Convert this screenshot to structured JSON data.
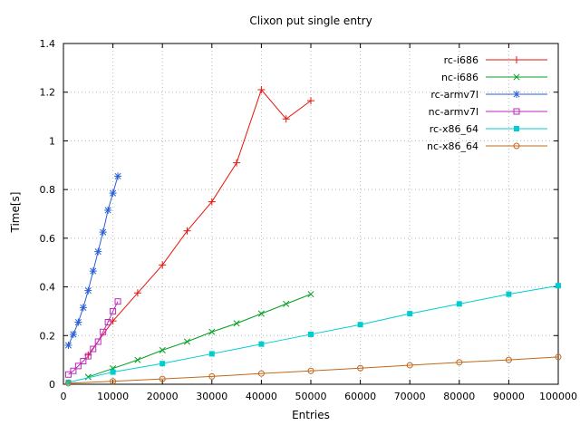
{
  "chart_data": {
    "type": "line",
    "title": "Clixon put single entry",
    "xlabel": "Entries",
    "ylabel": "Time[s]",
    "xlim": [
      0,
      100000
    ],
    "ylim": [
      0,
      1.4
    ],
    "x_ticks": [
      0,
      10000,
      20000,
      30000,
      40000,
      50000,
      60000,
      70000,
      80000,
      90000,
      100000
    ],
    "y_ticks": [
      0,
      0.2,
      0.4,
      0.6,
      0.8,
      1,
      1.2,
      1.4
    ],
    "grid": true,
    "legend_position": "top-right-inside",
    "axis_color": "#000000",
    "grid_color": "#b8b8b8",
    "series": [
      {
        "name": "rc-i686",
        "color": "#e8140c",
        "marker": "plus",
        "points": [
          [
            5000,
            0.12
          ],
          [
            10000,
            0.26
          ],
          [
            15000,
            0.375
          ],
          [
            20000,
            0.49
          ],
          [
            25000,
            0.63
          ],
          [
            30000,
            0.75
          ],
          [
            35000,
            0.91
          ],
          [
            40000,
            1.21
          ],
          [
            45000,
            1.09
          ],
          [
            50000,
            1.165
          ]
        ]
      },
      {
        "name": "nc-i686",
        "color": "#00a020",
        "marker": "cross",
        "points": [
          [
            5000,
            0.03
          ],
          [
            10000,
            0.065
          ],
          [
            15000,
            0.1
          ],
          [
            20000,
            0.14
          ],
          [
            25000,
            0.175
          ],
          [
            30000,
            0.215
          ],
          [
            35000,
            0.25
          ],
          [
            40000,
            0.29
          ],
          [
            45000,
            0.33
          ],
          [
            50000,
            0.37
          ]
        ]
      },
      {
        "name": "rc-armv7l",
        "color": "#2a5fd6",
        "marker": "asterisk",
        "points": [
          [
            1000,
            0.16
          ],
          [
            2000,
            0.205
          ],
          [
            3000,
            0.255
          ],
          [
            4000,
            0.315
          ],
          [
            5000,
            0.385
          ],
          [
            6000,
            0.465
          ],
          [
            7000,
            0.545
          ],
          [
            8000,
            0.625
          ],
          [
            9000,
            0.715
          ],
          [
            10000,
            0.785
          ],
          [
            11000,
            0.855
          ]
        ]
      },
      {
        "name": "nc-armv7l",
        "color": "#bb29bb",
        "marker": "square-open",
        "points": [
          [
            1000,
            0.04
          ],
          [
            2000,
            0.055
          ],
          [
            3000,
            0.075
          ],
          [
            4000,
            0.095
          ],
          [
            5000,
            0.115
          ],
          [
            6000,
            0.145
          ],
          [
            7000,
            0.175
          ],
          [
            8000,
            0.215
          ],
          [
            9000,
            0.255
          ],
          [
            10000,
            0.3
          ],
          [
            11000,
            0.34
          ]
        ]
      },
      {
        "name": "rc-x86_64",
        "color": "#00cdd0",
        "marker": "square-filled",
        "points": [
          [
            1000,
            0.008
          ],
          [
            10000,
            0.05
          ],
          [
            20000,
            0.085
          ],
          [
            30000,
            0.125
          ],
          [
            40000,
            0.165
          ],
          [
            50000,
            0.205
          ],
          [
            60000,
            0.245
          ],
          [
            70000,
            0.29
          ],
          [
            80000,
            0.33
          ],
          [
            90000,
            0.37
          ],
          [
            100000,
            0.405
          ]
        ]
      },
      {
        "name": "nc-x86_64",
        "color": "#c06818",
        "marker": "circle-open",
        "points": [
          [
            1000,
            0.004
          ],
          [
            10000,
            0.012
          ],
          [
            20000,
            0.022
          ],
          [
            30000,
            0.032
          ],
          [
            40000,
            0.044
          ],
          [
            50000,
            0.055
          ],
          [
            60000,
            0.066
          ],
          [
            70000,
            0.078
          ],
          [
            80000,
            0.09
          ],
          [
            90000,
            0.1
          ],
          [
            100000,
            0.112
          ]
        ]
      }
    ]
  }
}
